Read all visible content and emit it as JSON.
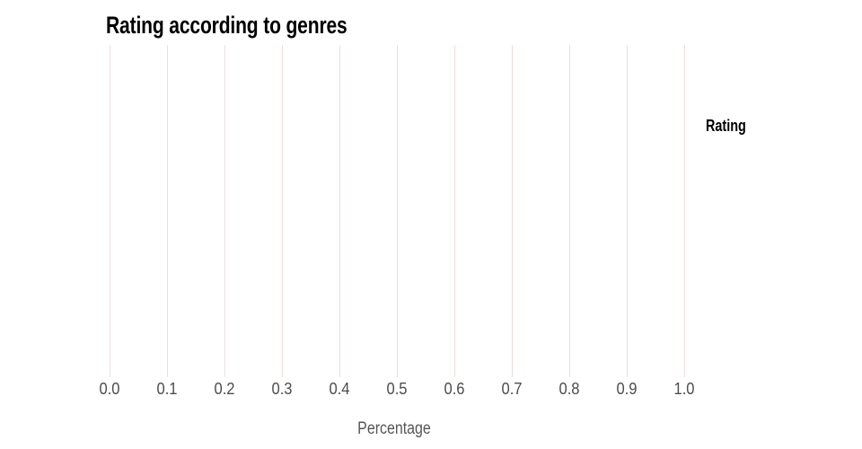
{
  "chart": {
    "title": "Rating according to genres",
    "legend": {
      "title": "Rating"
    },
    "x_axis": {
      "label": "Percentage",
      "ticks": [
        "0.0",
        "0.1",
        "0.2",
        "0.3",
        "0.4",
        "0.5",
        "0.6",
        "0.7",
        "0.8",
        "0.9",
        "1.0"
      ]
    }
  },
  "colors": {
    "background": "#ffffff",
    "gridline": "#f1dcdc",
    "title": "#000000",
    "tick_label": "#4d4d4d",
    "axis_label": "#565656",
    "legend_title": "#000000"
  },
  "chart_data": {
    "type": "bar",
    "title": "Rating according to genres",
    "xlabel": "Percentage",
    "ylabel": "",
    "legend_title": "Rating",
    "legend_position": "right",
    "xlim": [
      0.0,
      1.0
    ],
    "x_ticks": [
      0.0,
      0.1,
      0.2,
      0.3,
      0.4,
      0.5,
      0.6,
      0.7,
      0.8,
      0.9,
      1.0
    ],
    "grid": "vertical-only",
    "categories": [],
    "series": []
  }
}
